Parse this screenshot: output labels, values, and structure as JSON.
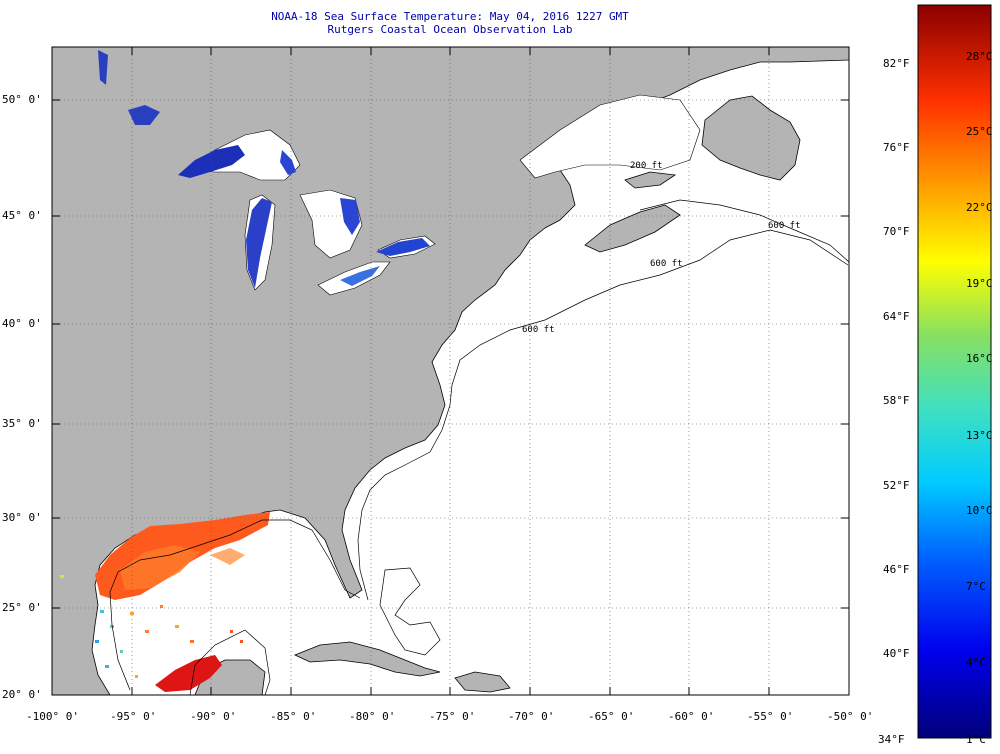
{
  "title_line1": "NOAA-18 Sea Surface Temperature:  May 04, 2016 1227 GMT",
  "title_line2": "Rutgers Coastal Ocean Observation Lab",
  "map": {
    "lat_labels": [
      "50° 0'",
      "45° 0'",
      "40° 0'",
      "35° 0'",
      "30° 0'",
      "25° 0'",
      "20° 0'"
    ],
    "lon_labels": [
      "-100° 0'",
      "-95° 0'",
      "-90° 0'",
      "-85° 0'",
      "-80° 0'",
      "-75° 0'",
      "-70° 0'",
      "-65° 0'",
      "-60° 0'",
      "-55° 0'",
      "-50° 0'"
    ],
    "lat_range": [
      20,
      52.5
    ],
    "lon_range": [
      -100,
      -50
    ],
    "land_color": "#b4b4b4",
    "contour_labels": [
      "200 ft",
      "600 ft"
    ]
  },
  "colorbar": {
    "fahrenheit_labels": [
      "82°F",
      "76°F",
      "70°F",
      "64°F",
      "58°F",
      "52°F",
      "46°F",
      "40°F",
      "34°F"
    ],
    "celsius_labels": [
      "28°C",
      "25°C",
      "22°C",
      "19°C",
      "16°C",
      "13°C",
      "10°C",
      "7°C",
      "4°C",
      "1°C"
    ],
    "colors": [
      "#00008b",
      "#0000ff",
      "#00bfff",
      "#40e0d0",
      "#7fd860",
      "#ffff00",
      "#ffa500",
      "#ff3300",
      "#8b0000"
    ]
  }
}
